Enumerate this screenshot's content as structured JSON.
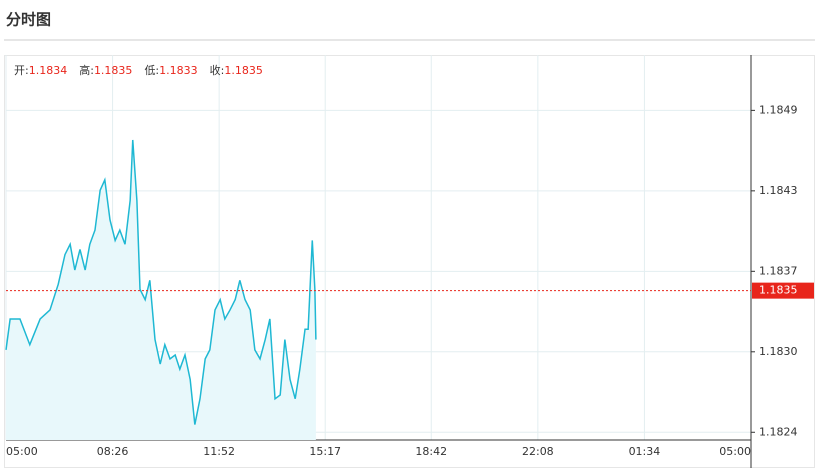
{
  "title": "分时图",
  "chart_data": {
    "type": "line",
    "info": [
      {
        "label": "开:",
        "value": "1.1834"
      },
      {
        "label": "高:",
        "value": "1.1835"
      },
      {
        "label": "低:",
        "value": "1.1833"
      },
      {
        "label": "收:",
        "value": "1.1835"
      }
    ],
    "x": [
      0,
      8,
      27,
      46,
      66,
      85,
      101,
      114,
      124,
      133,
      143,
      153,
      162,
      172,
      182,
      191,
      201,
      211,
      220,
      230,
      240,
      245,
      253,
      259,
      269,
      278,
      288,
      298,
      307,
      317,
      327,
      336,
      346,
      356,
      365,
      375,
      385,
      394,
      404,
      414,
      423,
      433,
      443,
      452,
      462,
      472,
      481,
      491,
      501,
      510,
      520,
      530,
      539,
      549,
      559,
      568,
      578,
      584,
      592,
      597,
      599
    ],
    "series": [
      {
        "color": "#1fb8d3",
        "values": [
          1.18304,
          1.18328,
          1.18328,
          1.18308,
          1.18328,
          1.18335,
          1.18355,
          1.18378,
          1.18386,
          1.18366,
          1.18382,
          1.18366,
          1.18386,
          1.18397,
          1.18428,
          1.18436,
          1.18405,
          1.18389,
          1.18397,
          1.18386,
          1.1842,
          1.18467,
          1.1842,
          1.18351,
          1.18343,
          1.18358,
          1.18312,
          1.18293,
          1.18308,
          1.18297,
          1.183,
          1.18289,
          1.183,
          1.18281,
          1.18246,
          1.18266,
          1.18297,
          1.18304,
          1.18335,
          1.18343,
          1.18328,
          1.18335,
          1.18343,
          1.18358,
          1.18343,
          1.18335,
          1.18304,
          1.18297,
          1.18312,
          1.18328,
          1.18266,
          1.18269,
          1.18312,
          1.18281,
          1.18266,
          1.18289,
          1.1832,
          1.1832,
          1.18389,
          1.18351,
          1.18312
        ]
      }
    ],
    "price_line": {
      "value": 1.1835,
      "color": "#e8251b"
    },
    "xlim": [
      0,
      1440
    ],
    "xticks": [
      {
        "value": 0,
        "label": "05:00"
      },
      {
        "value": 206,
        "label": "08:26"
      },
      {
        "value": 412,
        "label": "11:52"
      },
      {
        "value": 617,
        "label": "15:17"
      },
      {
        "value": 822,
        "label": "18:42"
      },
      {
        "value": 1028,
        "label": "22:08"
      },
      {
        "value": 1234,
        "label": "01:34"
      },
      {
        "value": 1440,
        "label": "05:00"
      }
    ],
    "ylim": [
      1.18234,
      1.18533
    ],
    "yticks": [
      {
        "value": 1.1824,
        "label": "1.1824"
      },
      {
        "value": 1.183025,
        "label": "1.1830"
      },
      {
        "value": 1.18365,
        "label": "1.1837"
      },
      {
        "value": 1.184275,
        "label": "1.1843"
      },
      1.1849
    ],
    "grid": true
  }
}
